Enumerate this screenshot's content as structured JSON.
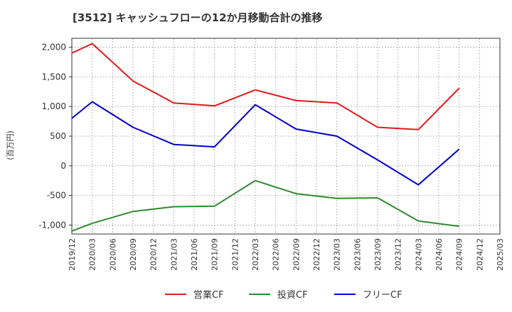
{
  "chart_data": {
    "type": "line",
    "title": "[3512]  キャッシュフローの12か月移動合計の推移",
    "ylabel": "(百万円)",
    "xlabel": "",
    "ylim": [
      -1150,
      2150
    ],
    "yticks": [
      2000,
      1500,
      1000,
      500,
      0,
      -500,
      -1000
    ],
    "ytick_labels": [
      "2,000",
      "1,500",
      "1,000",
      "500",
      "0",
      "-500",
      "-1,000"
    ],
    "x_tick_labels": [
      "2019/12",
      "2020/03",
      "2020/06",
      "2020/09",
      "2020/12",
      "2021/03",
      "2021/06",
      "2021/09",
      "2021/12",
      "2022/03",
      "2022/06",
      "2022/09",
      "2022/12",
      "2023/03",
      "2023/06",
      "2023/09",
      "2023/12",
      "2024/03",
      "2024/06",
      "2024/09",
      "2024/12",
      "2025/03"
    ],
    "grid": true,
    "legend_position": "bottom",
    "series": [
      {
        "name": "営業CF",
        "color": "#e31a1c",
        "x": [
          "2019/12",
          "2020/03",
          "2020/09",
          "2021/03",
          "2021/09",
          "2022/03",
          "2022/09",
          "2023/03",
          "2023/09",
          "2024/03",
          "2024/09"
        ],
        "values": [
          1900,
          2060,
          1430,
          1060,
          1010,
          1280,
          1100,
          1060,
          650,
          610,
          1310
        ]
      },
      {
        "name": "投資CF",
        "color": "#2e8b2e",
        "x": [
          "2019/12",
          "2020/03",
          "2020/09",
          "2021/03",
          "2021/09",
          "2022/03",
          "2022/09",
          "2023/03",
          "2023/09",
          "2024/03",
          "2024/09"
        ],
        "values": [
          -1100,
          -970,
          -770,
          -690,
          -680,
          -250,
          -470,
          -550,
          -540,
          -930,
          -1020
        ]
      },
      {
        "name": "フリーCF",
        "color": "#0000cc",
        "x": [
          "2019/12",
          "2020/03",
          "2020/09",
          "2021/03",
          "2021/09",
          "2022/03",
          "2022/09",
          "2023/03",
          "2023/09",
          "2024/03",
          "2024/09"
        ],
        "values": [
          800,
          1080,
          650,
          360,
          320,
          1030,
          620,
          500,
          100,
          -320,
          280
        ]
      }
    ]
  }
}
